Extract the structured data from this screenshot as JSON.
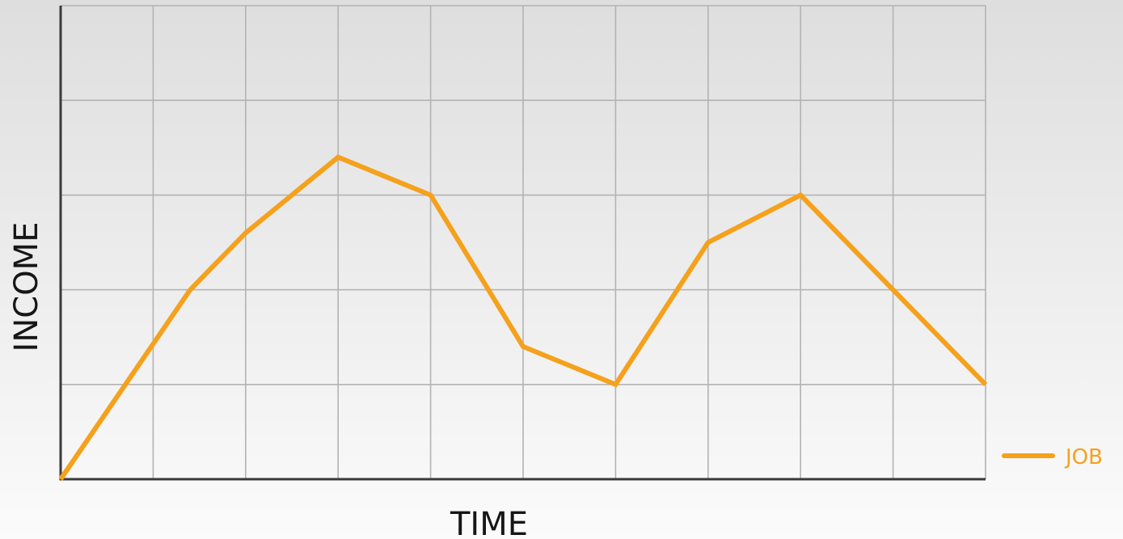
{
  "chart_data": {
    "type": "line",
    "xlabel": "TIME",
    "ylabel": "INCOME",
    "grid": true,
    "legend_position": "bottom-right",
    "xlim": [
      0,
      10
    ],
    "ylim": [
      0,
      5
    ],
    "series": [
      {
        "name": "JOB",
        "color": "#f5a11c",
        "points": [
          {
            "x": 0,
            "y": 0
          },
          {
            "x": 1.4,
            "y": 2
          },
          {
            "x": 2,
            "y": 2.6
          },
          {
            "x": 3,
            "y": 3.4
          },
          {
            "x": 4,
            "y": 3
          },
          {
            "x": 5,
            "y": 1.4
          },
          {
            "x": 6,
            "y": 1
          },
          {
            "x": 7,
            "y": 2.5
          },
          {
            "x": 8,
            "y": 3
          },
          {
            "x": 9,
            "y": 2
          },
          {
            "x": 10,
            "y": 1
          }
        ]
      }
    ]
  }
}
